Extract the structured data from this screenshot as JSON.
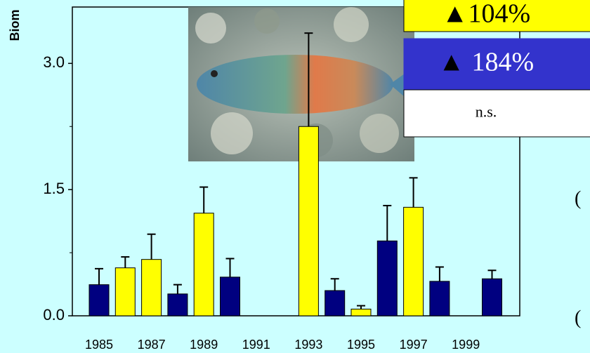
{
  "chart_data": {
    "type": "bar",
    "y_label": "Biom",
    "categories": [
      "1985",
      null,
      "1987",
      null,
      "1989",
      null,
      "1991",
      null,
      "1993",
      null,
      "1995",
      null,
      "1997",
      null,
      "1999",
      null
    ],
    "series": [
      {
        "color": "#000080",
        "values": [
          0.37,
          null,
          null,
          0.26,
          null,
          0.46,
          null,
          null,
          null,
          0.3,
          null,
          0.89,
          null,
          0.41,
          null,
          0.44
        ],
        "errors": [
          0.19,
          null,
          null,
          0.11,
          null,
          0.22,
          null,
          null,
          null,
          0.14,
          null,
          0.42,
          null,
          0.17,
          null,
          0.1
        ]
      },
      {
        "color": "#ffff00",
        "values": [
          null,
          0.57,
          0.67,
          null,
          1.22,
          null,
          null,
          null,
          2.25,
          null,
          0.08,
          null,
          1.29,
          null,
          null,
          null
        ],
        "errors": [
          null,
          0.13,
          0.3,
          null,
          0.31,
          null,
          null,
          null,
          1.11,
          null,
          0.04,
          null,
          0.35,
          null,
          null,
          null
        ]
      }
    ],
    "ylim": [
      0,
      3.67
    ],
    "yticks": [
      {
        "value": 0,
        "label": "0.0"
      },
      {
        "value": 1.5,
        "label": "1.5"
      },
      {
        "value": 3,
        "label": "3.0"
      }
    ],
    "minor_yticks": [
      0.75,
      2.25
    ],
    "boxes": [
      {
        "marker": "▲",
        "text": "104%",
        "color": "#ffff00",
        "text_color": "#000000"
      },
      {
        "marker": "▲",
        "text": "184%",
        "color": "#3333cc",
        "text_color": "#ffffff"
      },
      {
        "text": "n.s.",
        "color": "#ffffff",
        "text_color": "#000000"
      }
    ],
    "annotations": [
      "(",
      "("
    ]
  }
}
